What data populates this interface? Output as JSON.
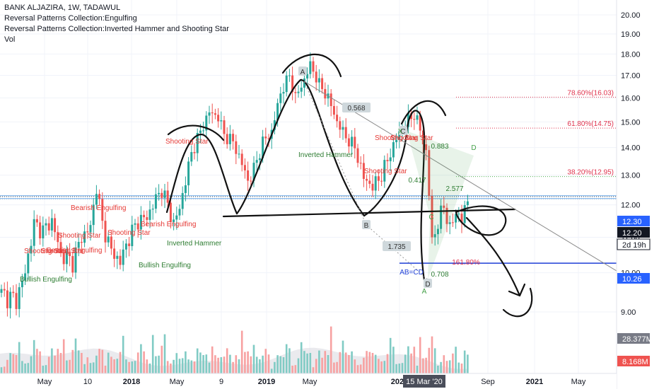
{
  "legend": {
    "symbol_line": "BANK ALJAZIRA, 1W, TADAWUL",
    "indicator_1": "Reversal Patterns Collection:Engulfing",
    "indicator_2": "Reversal Patterns Collection:Inverted Hammer and Shooting Star",
    "indicator_3": "Vol"
  },
  "colors": {
    "up": "#26a69a",
    "down": "#ef5350",
    "vol_up": "#80cbc4",
    "vol_down": "#f7a1a1",
    "pattern_bear": "#e53935",
    "pattern_bull": "#2e7d32",
    "blue_line": "#1e3fd6",
    "fib": "#e0334d",
    "harmonic": "#43a047"
  },
  "time_axis": {
    "labels": [
      "May",
      "10",
      "2018",
      "May",
      "9",
      "2019",
      "May",
      "2020",
      "15 Mar '20",
      "Sep",
      "2021",
      "May"
    ],
    "crosshair_label": "15 Mar '20"
  },
  "price_axis": {
    "labels": [
      "20.00",
      "19.00",
      "18.00",
      "17.00",
      "16.00",
      "15.00",
      "14.00",
      "13.00",
      "12.00",
      "11.00",
      "10.00",
      "9.00"
    ],
    "badges": [
      {
        "text": "12.30",
        "kind": "blue"
      },
      {
        "text": "12.20",
        "kind": "dark"
      },
      {
        "text": "2d 19h",
        "kind": "light"
      },
      {
        "text": "10.26",
        "kind": "blue"
      },
      {
        "text": "28.377M",
        "kind": "grey"
      },
      {
        "text": "8.168M",
        "kind": "red"
      }
    ]
  },
  "patterns": [
    {
      "text": "Bearish Engulfing",
      "kind": "bear"
    },
    {
      "text": "Shooting Star",
      "kind": "bear"
    },
    {
      "text": "Shooting Star",
      "kind": "bear"
    },
    {
      "text": "Bearish Engulfing",
      "kind": "bear"
    },
    {
      "text": "Shooting Star",
      "kind": "bear"
    },
    {
      "text": "Bearish Engulfing",
      "kind": "bear"
    },
    {
      "text": "Shooting Star",
      "kind": "bear"
    },
    {
      "text": "Shooting Star",
      "kind": "bear"
    },
    {
      "text": "Shooting Star",
      "kind": "bear"
    },
    {
      "text": "Bullish Engulfing",
      "kind": "bull"
    },
    {
      "text": "Inverted Hammer",
      "kind": "bull"
    },
    {
      "text": "Bullish Engulfing",
      "kind": "bull"
    },
    {
      "text": "Inverted Hammer",
      "kind": "bull"
    },
    {
      "text": "Shooting Star",
      "kind": "bear"
    },
    {
      "text": "Shooting Star",
      "kind": "bear"
    }
  ],
  "harmonic": {
    "points": [
      "A",
      "B",
      "C",
      "D",
      "X",
      "C",
      "D",
      "A"
    ],
    "ratios": [
      "0.568",
      "1.735",
      "0.883",
      "0.417",
      "2.577",
      "0.708",
      "AB=CD",
      "161.80%"
    ]
  },
  "fib_levels": [
    "78.60%(16.03)",
    "61.80%(14.75)",
    "38.20%(12.95)"
  ],
  "chart_data": {
    "type": "candlestick",
    "title": "BANK ALJAZIRA, 1W, TADAWUL",
    "ylim": [
      8.5,
      20.4
    ],
    "y_scale": "log",
    "y_ticks": [
      20.0,
      19.0,
      18.0,
      17.0,
      16.0,
      15.0,
      14.0,
      13.0,
      12.0,
      11.0,
      10.0,
      9.0
    ],
    "x_ticks": [
      "May",
      "10",
      "2018",
      "May",
      "9",
      "2019",
      "May",
      "2020",
      "Sep",
      "2021",
      "May"
    ],
    "anchors": [
      [
        0,
        9.45
      ],
      [
        3,
        9.35
      ],
      [
        5,
        9.3
      ],
      [
        8,
        10.0
      ],
      [
        11,
        11.4
      ],
      [
        14,
        11.2
      ],
      [
        17,
        11.5
      ],
      [
        20,
        10.5
      ],
      [
        24,
        10.3
      ],
      [
        27,
        11.0
      ],
      [
        30,
        11.3
      ],
      [
        32,
        12.6
      ],
      [
        34,
        11.4
      ],
      [
        37,
        10.6
      ],
      [
        40,
        10.3
      ],
      [
        43,
        11.0
      ],
      [
        46,
        11.5
      ],
      [
        49,
        11.6
      ],
      [
        52,
        12.2
      ],
      [
        54,
        12.5
      ],
      [
        56,
        12.0
      ],
      [
        58,
        11.4
      ],
      [
        60,
        11.9
      ],
      [
        62,
        12.8
      ],
      [
        64,
        13.8
      ],
      [
        67,
        14.6
      ],
      [
        70,
        15.4
      ],
      [
        73,
        15.2
      ],
      [
        75,
        14.5
      ],
      [
        78,
        14.2
      ],
      [
        81,
        13.4
      ],
      [
        83,
        12.8
      ],
      [
        85,
        13.2
      ],
      [
        88,
        14.2
      ],
      [
        91,
        14.6
      ],
      [
        94,
        16.2
      ],
      [
        97,
        17.0
      ],
      [
        99,
        16.0
      ],
      [
        102,
        16.8
      ],
      [
        104,
        17.5
      ],
      [
        107,
        16.6
      ],
      [
        110,
        16.0
      ],
      [
        113,
        15.0
      ],
      [
        116,
        14.4
      ],
      [
        119,
        14.0
      ],
      [
        122,
        12.9
      ],
      [
        125,
        12.6
      ],
      [
        128,
        13.0
      ],
      [
        131,
        13.8
      ],
      [
        134,
        14.6
      ],
      [
        137,
        15.1
      ],
      [
        139,
        15.3
      ],
      [
        141,
        14.7
      ],
      [
        143,
        13.8
      ],
      [
        145,
        10.9
      ],
      [
        147,
        11.4
      ],
      [
        149,
        12.0
      ],
      [
        151,
        11.2
      ],
      [
        153,
        11.8
      ],
      [
        155,
        11.5
      ],
      [
        157,
        12.2
      ]
    ],
    "volume_m": [
      4,
      3,
      6,
      9,
      7,
      5,
      12,
      8,
      5,
      4,
      7,
      16,
      9,
      6,
      5,
      4,
      8,
      12,
      6,
      9,
      5,
      22,
      7,
      6,
      11,
      17,
      8,
      5,
      6,
      9
    ],
    "volume_ma_m": 28.377,
    "last_volume_m": 8.168,
    "horizontal_levels": [
      12.3,
      12.2,
      10.26
    ]
  }
}
